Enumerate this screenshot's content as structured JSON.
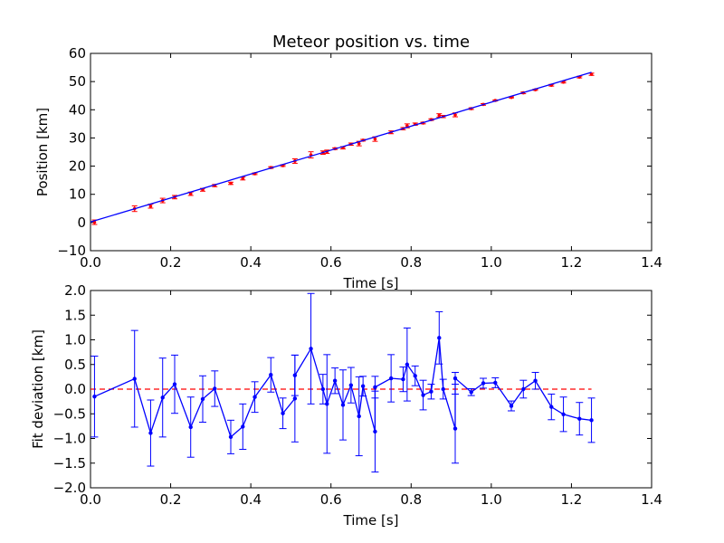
{
  "chart_data": [
    {
      "type": "scatter",
      "title": "Meteor position vs. time",
      "xlabel": "Time [s]",
      "ylabel": "Position [km]",
      "xlim": [
        0.0,
        1.4
      ],
      "ylim": [
        -10,
        60
      ],
      "xticks": [
        "0.0",
        "0.2",
        "0.4",
        "0.6",
        "0.8",
        "1.0",
        "1.2",
        "1.4"
      ],
      "yticks": [
        "−10",
        "0",
        "10",
        "20",
        "30",
        "40",
        "50",
        "60"
      ],
      "series": [
        {
          "kind": "errorbar-points",
          "color": "#ff0000",
          "x": [
            0.01,
            0.11,
            0.15,
            0.18,
            0.21,
            0.25,
            0.28,
            0.31,
            0.35,
            0.38,
            0.41,
            0.45,
            0.48,
            0.51,
            0.55,
            0.58,
            0.59,
            0.61,
            0.63,
            0.65,
            0.67,
            0.68,
            0.71,
            0.75,
            0.78,
            0.79,
            0.81,
            0.83,
            0.85,
            0.87,
            0.88,
            0.91,
            0.95,
            0.98,
            1.01,
            1.05,
            1.08,
            1.11,
            1.15,
            1.18,
            1.22,
            1.25
          ],
          "y": [
            0.1,
            4.9,
            5.8,
            7.8,
            9.0,
            10.2,
            11.6,
            13.1,
            13.9,
            15.6,
            17.3,
            19.5,
            20.2,
            21.8,
            24.0,
            24.8,
            25.1,
            26.2,
            26.5,
            27.8,
            28.0,
            29.2,
            29.6,
            32.0,
            33.3,
            34.3,
            34.9,
            35.3,
            36.5,
            38.0,
            37.6,
            38.2,
            40.4,
            41.9,
            43.3,
            44.4,
            46.0,
            47.1,
            48.7,
            49.8,
            51.6,
            52.6
          ],
          "err": [
            0.8,
            1.0,
            0.7,
            0.8,
            0.6,
            0.6,
            0.5,
            0.4,
            0.4,
            0.5,
            0.3,
            0.3,
            0.3,
            0.8,
            1.1,
            0.6,
            0.6,
            0.3,
            0.4,
            0.4,
            0.8,
            0.3,
            0.8,
            0.5,
            0.4,
            0.7,
            0.4,
            0.3,
            0.3,
            0.6,
            0.4,
            0.7,
            0.3,
            0.3,
            0.2,
            0.2,
            0.3,
            0.2,
            0.3,
            0.3,
            0.3,
            0.4
          ]
        },
        {
          "kind": "line",
          "color": "#0000ff",
          "x": [
            0.0,
            1.25
          ],
          "y": [
            0.2,
            53.3
          ]
        }
      ]
    },
    {
      "type": "line",
      "xlabel": "Time [s]",
      "ylabel": "Fit deviation [km]",
      "xlim": [
        0.0,
        1.4
      ],
      "ylim": [
        -2.0,
        2.0
      ],
      "xticks": [
        "0.0",
        "0.2",
        "0.4",
        "0.6",
        "0.8",
        "1.0",
        "1.2",
        "1.4"
      ],
      "yticks": [
        "−2.0",
        "−1.5",
        "−1.0",
        "−0.5",
        "0.0",
        "0.5",
        "1.0",
        "1.5",
        "2.0"
      ],
      "reference_line": {
        "y": 0.0,
        "x_range": [
          0.0,
          1.25
        ],
        "color": "#ff0000",
        "style": "dashed"
      },
      "series": [
        {
          "kind": "errorbar-line",
          "color": "#0000ff",
          "x": [
            0.01,
            0.11,
            0.15,
            0.18,
            0.21,
            0.25,
            0.28,
            0.31,
            0.35,
            0.38,
            0.41,
            0.45,
            0.48,
            0.51,
            0.51,
            0.55,
            0.58,
            0.59,
            0.61,
            0.63,
            0.65,
            0.67,
            0.68,
            0.71,
            0.71,
            0.75,
            0.78,
            0.79,
            0.81,
            0.83,
            0.85,
            0.87,
            0.88,
            0.91,
            0.91,
            0.95,
            0.98,
            1.01,
            1.05,
            1.08,
            1.11,
            1.15,
            1.18,
            1.22,
            1.25
          ],
          "y": [
            -0.15,
            0.21,
            -0.89,
            -0.17,
            0.1,
            -0.77,
            -0.2,
            0.01,
            -0.97,
            -0.76,
            -0.16,
            0.29,
            -0.49,
            -0.19,
            0.28,
            0.82,
            0.0,
            -0.3,
            0.17,
            -0.32,
            0.08,
            -0.55,
            0.06,
            -0.86,
            0.04,
            0.22,
            0.2,
            0.5,
            0.27,
            -0.12,
            -0.05,
            1.04,
            0.0,
            -0.8,
            0.22,
            -0.06,
            0.12,
            0.13,
            -0.34,
            0.0,
            0.17,
            -0.36,
            -0.51,
            -0.6,
            -0.63
          ],
          "err": [
            0.82,
            0.98,
            0.67,
            0.8,
            0.59,
            0.61,
            0.47,
            0.36,
            0.34,
            0.46,
            0.31,
            0.35,
            0.31,
            0.88,
            0.41,
            1.12,
            0.3,
            1.0,
            0.26,
            0.71,
            0.36,
            0.8,
            0.2,
            0.82,
            0.22,
            0.48,
            0.25,
            0.74,
            0.2,
            0.3,
            0.15,
            0.53,
            0.2,
            0.7,
            0.12,
            0.07,
            0.1,
            0.1,
            0.1,
            0.18,
            0.17,
            0.26,
            0.35,
            0.33,
            0.45
          ]
        }
      ]
    }
  ]
}
